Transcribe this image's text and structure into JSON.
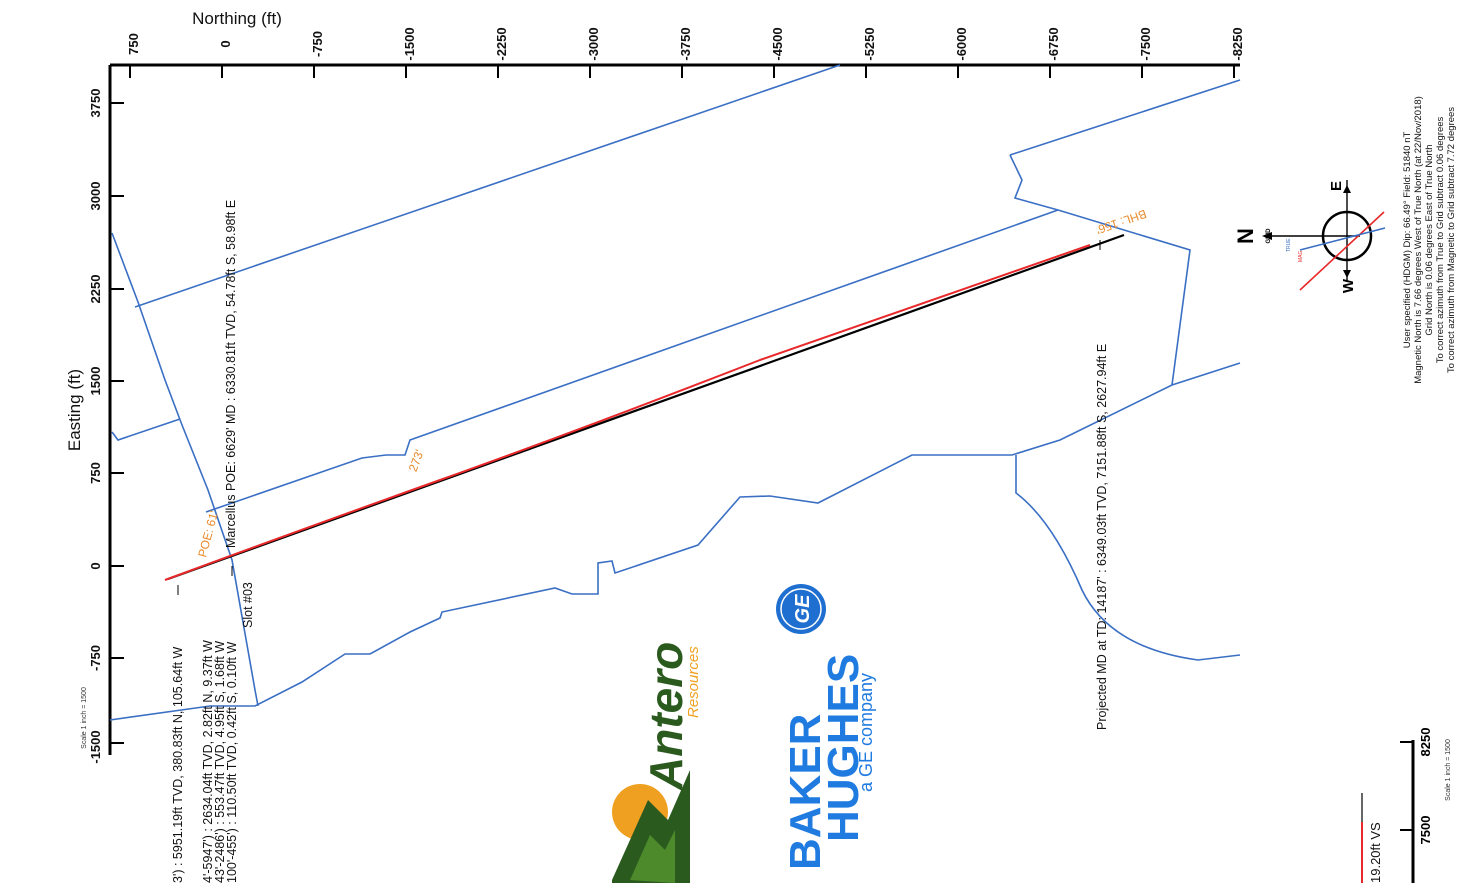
{
  "axes": {
    "northing_title": "Northing (ft)",
    "easting_title": "Easting (ft)",
    "northing_ticks": [
      "750",
      "0",
      "-750",
      "-1500",
      "-2250",
      "-3000",
      "-3750",
      "-4500",
      "-5250",
      "-6000",
      "-6750",
      "-7500",
      "-8250"
    ],
    "easting_ticks": [
      "3750",
      "3000",
      "2250",
      "1500",
      "750",
      "0",
      "-750",
      "-1500"
    ],
    "scale_label": "Scale 1 inch = 1500"
  },
  "well_labels": {
    "slot": "Slot #03",
    "marcellus_poe": "Marcellus POE: 6629' MD : 6330.81ft TVD, 54.78ft S, 58.98ft E",
    "projected_td": "Projected MD at TD: 14187' : 6349.03ft TVD, 7151.88ft S, 2627.94ft E",
    "bhl": "BHL: 156'",
    "poe": "POE: 61'",
    "setback": "273'"
  },
  "lease_lines": [
    "3') : 5951.19ft TVD, 380.83ft N, 105.64ft W",
    "4'-5947') : 2634.04ft TVD, 2.82ft N, 9.37ft W",
    "43'-2486') : 553.47ft TVD, 4.95ft S, 1.68ft W",
    "100'-455') : 110.50ft TVD, 0.42ft S, 0.10ft W"
  ],
  "magnetic_info": [
    "User specified (HDGM) Dip: 66.49°  Field: 51840 nT",
    "Magnetic North is 7.66 degrees West of True North (at 22/Nov/2018)",
    "Grid North is 0.06 degrees East of True North",
    "To correct azimuth from True to Grid subtract 0.06 degrees",
    "To correct azimuth from Magnetic to Grid subtract 7.72 degrees"
  ],
  "compass": {
    "north": "N",
    "grid": "GRID",
    "east": "E",
    "west": "W",
    "true_label": "TRUE",
    "mag_label": "MAG"
  },
  "vs_section": {
    "vs_label": "19.20ft VS",
    "ticks": [
      "8250",
      "7500"
    ],
    "scale_label": "Scale 1 inch = 1500"
  },
  "logos": {
    "antero_name": "Antero",
    "antero_sub": "Resources",
    "ge_mark": "GE",
    "bh_line1": "BAKER",
    "bh_line2": "HUGHES",
    "bh_tag": "a GE company"
  },
  "colors": {
    "lease_blue": "#3a6fc4",
    "plan_red": "#e8282a",
    "annotation_orange": "#e88a2a",
    "antero_green": "#2b5a1f",
    "antero_orange": "#f0a020",
    "baker_blue": "#1f7be0"
  }
}
